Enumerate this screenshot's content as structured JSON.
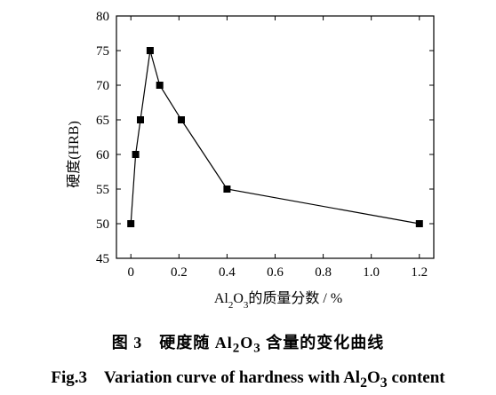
{
  "chart_data": {
    "type": "line",
    "x": [
      0,
      0.02,
      0.04,
      0.08,
      0.12,
      0.21,
      0.4,
      1.2
    ],
    "series": [
      {
        "values": [
          50,
          60,
          65,
          75,
          70,
          65,
          55,
          50
        ],
        "marker": "square",
        "color": "#000000"
      }
    ],
    "xlabel_parts": {
      "p1": "Al",
      "s1": "2",
      "p2": "O",
      "s2": "3",
      "p3": "的质量分数 / %"
    },
    "ylabel": "硬度(HRB)",
    "xlim": [
      -0.06,
      1.26
    ],
    "ylim": [
      45,
      80
    ],
    "xticks": [
      0,
      0.2,
      0.4,
      0.6,
      0.8,
      1.0,
      1.2
    ],
    "xtick_labels": [
      "0",
      "0.2",
      "0.4",
      "0.6",
      "0.8",
      "1.0",
      "1.2"
    ],
    "yticks": [
      45,
      50,
      55,
      60,
      65,
      70,
      75,
      80
    ],
    "ytick_labels": [
      "45",
      "50",
      "55",
      "60",
      "65",
      "70",
      "75",
      "80"
    ],
    "grid": false,
    "legend": "none"
  },
  "caption_cn": {
    "prefix": "图 3　硬度随 ",
    "p1": "Al",
    "s1": "2",
    "p2": "O",
    "s2": "3",
    "suffix": " 含量的变化曲线"
  },
  "caption_en": {
    "prefix": "Fig.3　Variation curve of hardness with ",
    "p1": "Al",
    "s1": "2",
    "p2": "O",
    "s2": "3",
    "suffix": " content"
  }
}
